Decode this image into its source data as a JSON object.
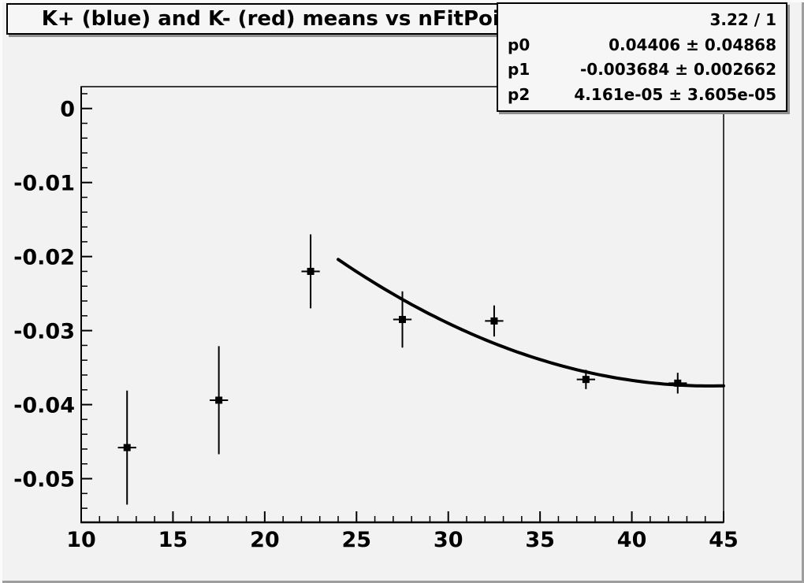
{
  "title": "K+ (blue) and K- (red) means vs nFitPoints",
  "stats": {
    "chi2_label": "3.22 / 1",
    "rows": [
      {
        "name": "p0",
        "value": "0.04406 ± 0.04868"
      },
      {
        "name": "p1",
        "value": "-0.003684 ± 0.002662"
      },
      {
        "name": "p2",
        "value": "4.161e-05 ± 3.605e-05"
      }
    ]
  },
  "colors": {
    "canvas_bg": "#f2f2f2",
    "pave_bg": "#f6f6f6",
    "ink": "#000000",
    "bevel_light": "#fbfbfb",
    "bevel_dark": "#9e9e9e"
  },
  "chart_data": {
    "type": "scatter",
    "title": "K+ (blue) and K- (red) means vs nFitPoints",
    "xlabel": "",
    "ylabel": "",
    "xlim": [
      10,
      45
    ],
    "ylim": [
      -0.0559,
      0.00295
    ],
    "x_ticks": [
      10,
      15,
      20,
      25,
      30,
      35,
      40,
      45
    ],
    "x_tick_labels": [
      "10",
      "15",
      "20",
      "25",
      "30",
      "35",
      "40",
      "45"
    ],
    "y_ticks": [
      0,
      -0.01,
      -0.02,
      -0.03,
      -0.04,
      -0.05
    ],
    "y_tick_labels": [
      "0",
      "-0.01",
      "-0.02",
      "-0.03",
      "-0.04",
      "-0.05"
    ],
    "x_minor_step": 1,
    "y_minor_step": 0.002,
    "grid": false,
    "legend": "none",
    "marker": "filled-square",
    "series": [
      {
        "name": "means vs nFitPoints",
        "color": "#000000",
        "points": [
          {
            "x": 12.5,
            "y": -0.0458,
            "ey": 0.0077,
            "ex": 0.5
          },
          {
            "x": 17.5,
            "y": -0.0394,
            "ey": 0.0073,
            "ex": 0.5
          },
          {
            "x": 22.5,
            "y": -0.022,
            "ey": 0.005,
            "ex": 0.5
          },
          {
            "x": 27.5,
            "y": -0.0285,
            "ey": 0.0038,
            "ex": 0.5
          },
          {
            "x": 32.5,
            "y": -0.0287,
            "ey": 0.0021,
            "ex": 0.5
          },
          {
            "x": 37.5,
            "y": -0.0366,
            "ey": 0.0013,
            "ex": 0.5
          },
          {
            "x": 42.5,
            "y": -0.0371,
            "ey": 0.0014,
            "ex": 0.5
          }
        ]
      }
    ],
    "fit": {
      "type": "pol2",
      "p0": 0.04406,
      "p1": -0.003684,
      "p2": 4.161e-05,
      "x_range": [
        24,
        45
      ],
      "color": "#000000",
      "line_width": 4
    }
  }
}
